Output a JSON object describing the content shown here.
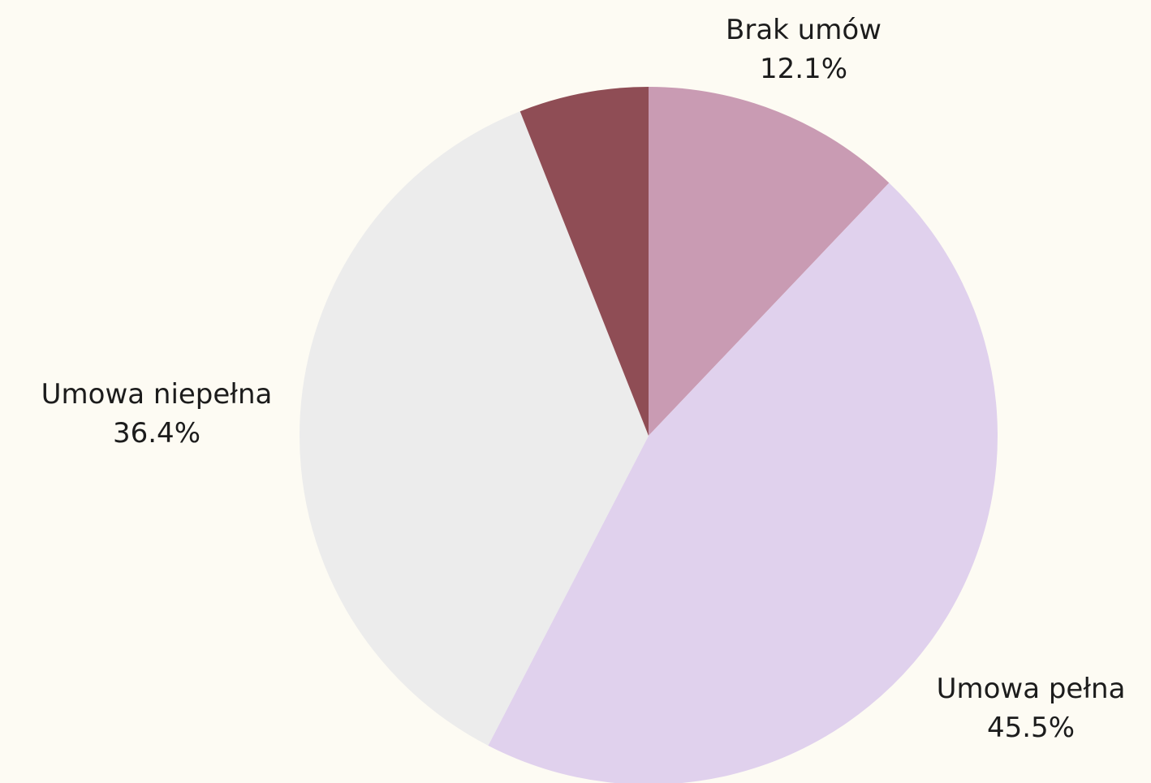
{
  "chart_data": {
    "type": "pie",
    "title": "",
    "start_angle_deg": 0,
    "direction": "clockwise",
    "slices": [
      {
        "label": "Brak umów",
        "value": 12.1,
        "value_label": "12.1%",
        "color": "#c99bb3"
      },
      {
        "label": "Umowa pełna",
        "value": 45.5,
        "value_label": "45.5%",
        "color": "#e0d1ed"
      },
      {
        "label": "Umowa niepełna",
        "value": 36.4,
        "value_label": "36.4%",
        "color": "#ececec"
      },
      {
        "label": "",
        "value": 6.0,
        "value_label": "",
        "color": "#8f4d55"
      }
    ]
  }
}
